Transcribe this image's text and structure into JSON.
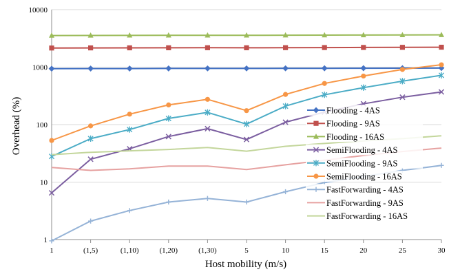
{
  "chart_data": {
    "type": "line",
    "title": "",
    "xlabel": "Host mobility (m/s)",
    "ylabel": "Overhead (%)",
    "yscale": "log",
    "ylim": [
      1,
      10000
    ],
    "yticks": [
      "1",
      "10",
      "100",
      "1000",
      "10000"
    ],
    "grid": "horizontal",
    "legend_position": "right",
    "categories": [
      "1",
      "(1,5)",
      "(1,10)",
      "(1,20)",
      "(1,30)",
      "5",
      "10",
      "15",
      "20",
      "25",
      "30"
    ],
    "series": [
      {
        "name": "Flooding - 4AS",
        "color": "#4472C4",
        "marker": "diamond",
        "values": [
          940,
          945,
          945,
          948,
          950,
          950,
          952,
          955,
          958,
          960,
          965
        ]
      },
      {
        "name": "Flooding - 9AS",
        "color": "#C0504D",
        "marker": "square",
        "values": [
          2150,
          2160,
          2165,
          2170,
          2175,
          2170,
          2180,
          2190,
          2200,
          2210,
          2220
        ]
      },
      {
        "name": "Flooding - 16AS",
        "color": "#9BBB59",
        "marker": "triangle",
        "values": [
          3550,
          3560,
          3570,
          3575,
          3580,
          3575,
          3590,
          3600,
          3610,
          3620,
          3640
        ]
      },
      {
        "name": "SemiFlooding - 4AS",
        "color": "#7B5EA0",
        "marker": "x",
        "values": [
          6.5,
          25,
          38,
          62,
          85,
          55,
          110,
          165,
          230,
          300,
          370
        ]
      },
      {
        "name": "SemiFlooding - 9AS",
        "color": "#4BACC6",
        "marker": "star",
        "values": [
          28,
          57,
          82,
          128,
          163,
          102,
          210,
          330,
          440,
          570,
          720
        ]
      },
      {
        "name": "SemiFlooding - 16AS",
        "color": "#F79646",
        "marker": "circle",
        "values": [
          53,
          95,
          152,
          220,
          275,
          175,
          335,
          520,
          700,
          910,
          1100
        ]
      },
      {
        "name": "FastForwarding - 4AS",
        "color": "#95B3D7",
        "marker": "plus",
        "values": [
          0.95,
          2.1,
          3.2,
          4.5,
          5.2,
          4.5,
          6.8,
          9.8,
          12.5,
          16,
          19.5
        ]
      },
      {
        "name": "FastForwarding - 9AS",
        "color": "#E6A1A0",
        "marker": "none",
        "values": [
          18,
          16,
          17,
          19,
          19,
          16.5,
          20,
          24,
          29,
          34,
          39
        ]
      },
      {
        "name": "FastForwarding - 16AS",
        "color": "#C3D69B",
        "marker": "none",
        "values": [
          30,
          33,
          35,
          37,
          40,
          34.5,
          42,
          47,
          52,
          57,
          64
        ]
      }
    ]
  }
}
